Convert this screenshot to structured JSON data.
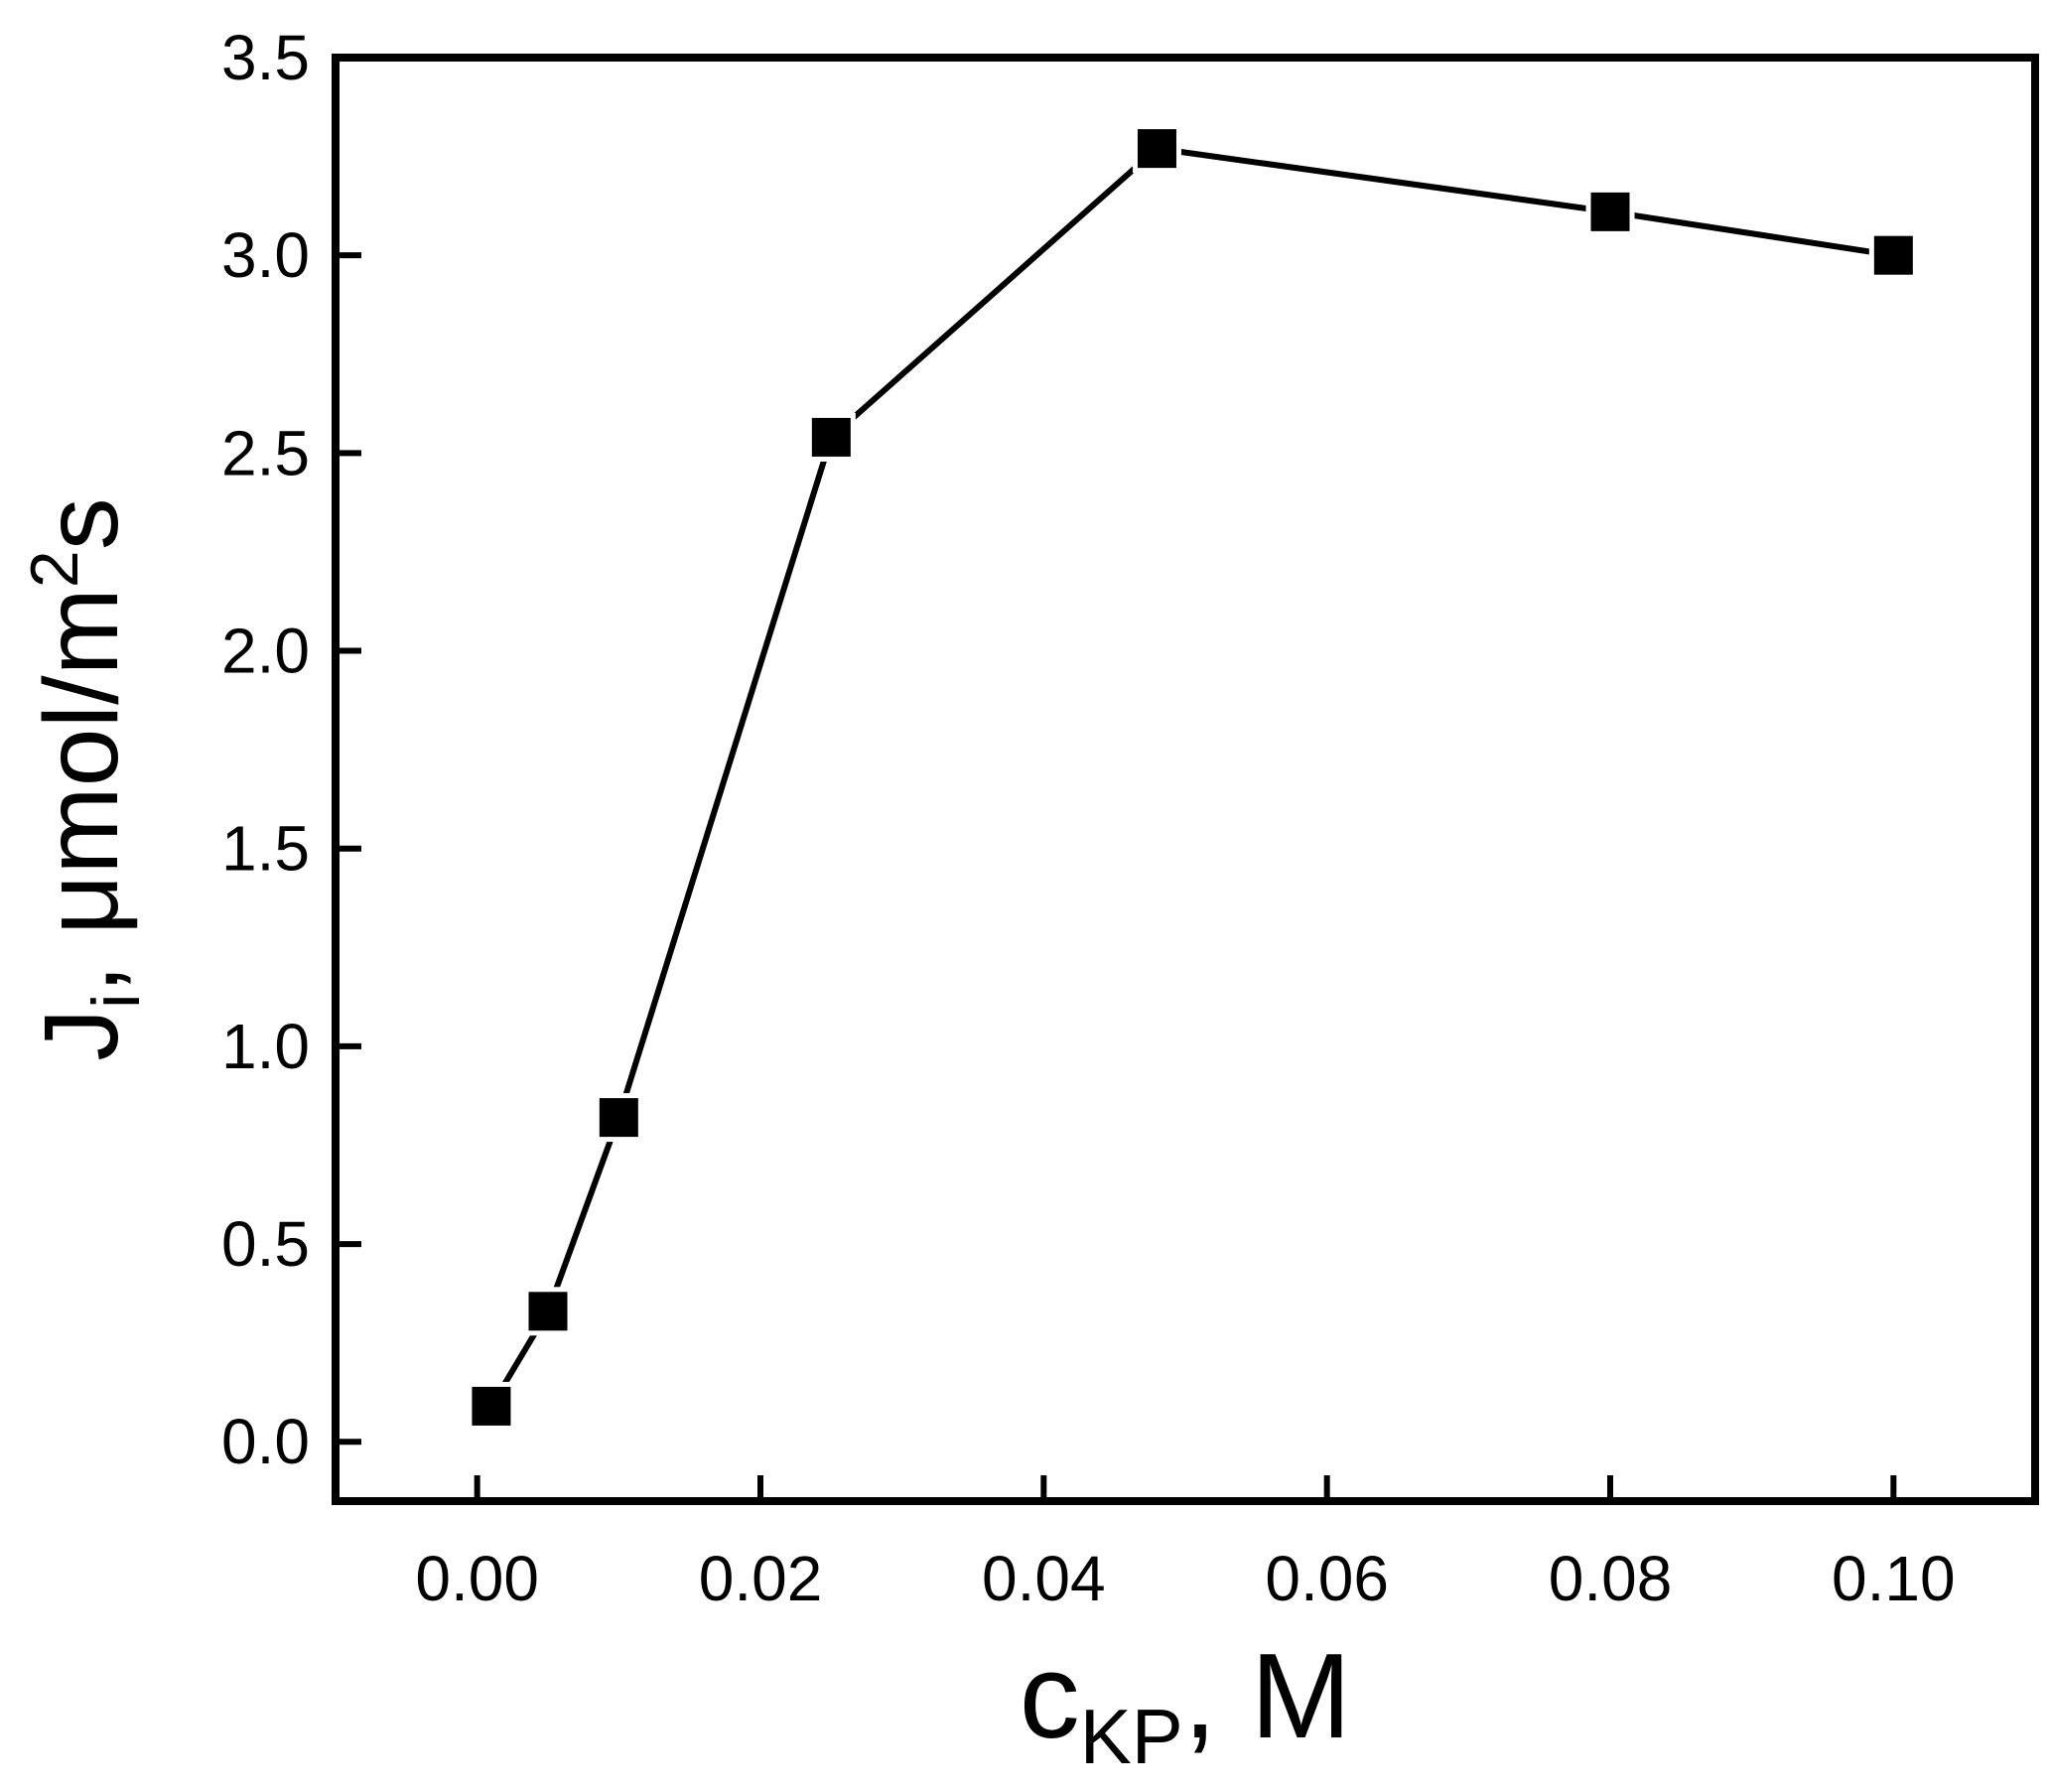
{
  "chart_data": {
    "type": "line",
    "xlabel": {
      "main": "c",
      "sub": "KP",
      "suffix": ", M"
    },
    "ylabel": {
      "main": "J",
      "sub": "i",
      "mid": ", μmol/m",
      "sup": "2",
      "tail": "s"
    },
    "xlim": [
      -0.01,
      0.11
    ],
    "ylim": [
      -0.15,
      3.5
    ],
    "xticks": [
      0.0,
      0.02,
      0.04,
      0.06,
      0.08,
      0.1
    ],
    "xtick_labels": [
      "0.00",
      "0.02",
      "0.04",
      "0.06",
      "0.08",
      "0.10"
    ],
    "yticks": [
      0.0,
      0.5,
      1.0,
      1.5,
      2.0,
      2.5,
      3.0,
      3.5
    ],
    "ytick_labels": [
      "0.0",
      "0.5",
      "1.0",
      "1.5",
      "2.0",
      "2.5",
      "3.0",
      "3.5"
    ],
    "grid": false,
    "marker": "square",
    "color": "#000000",
    "series": [
      {
        "x": [
          0.001,
          0.005,
          0.01,
          0.025,
          0.048,
          0.08,
          0.1
        ],
        "y": [
          0.09,
          0.33,
          0.82,
          2.54,
          3.27,
          3.11,
          3.0
        ]
      }
    ]
  }
}
